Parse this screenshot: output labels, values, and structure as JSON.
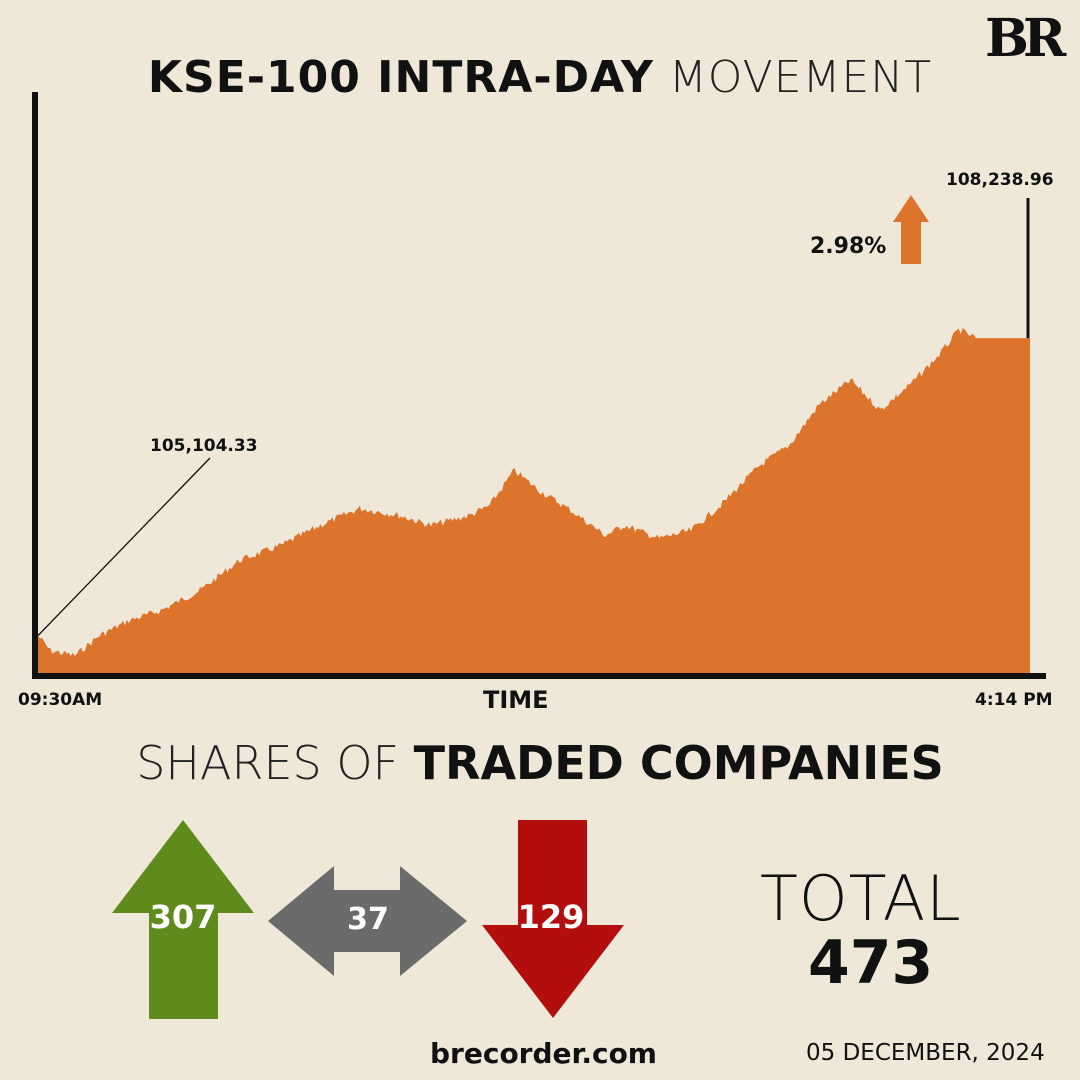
{
  "brand": {
    "logo": "BR",
    "site": "brecorder.com",
    "date": "05 DECEMBER, 2024"
  },
  "colors": {
    "background": "#efe7d8",
    "area": "#dc742c",
    "up": "#5f8a1c",
    "unchanged": "#6b6b6b",
    "down": "#b30e0e"
  },
  "chart_data": {
    "type": "area",
    "title_bold": "KSE-100 INTRA-DAY",
    "title_light": "MOVEMENT",
    "xlabel": "TIME",
    "x_start_label": "09:30AM",
    "x_end_label": "4:14 PM",
    "x_unit": "minutes since 09:30",
    "xlim": [
      0,
      404
    ],
    "ylim": [
      104710,
      110800
    ],
    "open_label": "105,104.33",
    "close_label": "108,238.96",
    "change_label": "2.98%",
    "change_direction": "up",
    "x": [
      0,
      5,
      15,
      25,
      37,
      50,
      66,
      82,
      99,
      115,
      131,
      147,
      160,
      176,
      184,
      194,
      204,
      217,
      231,
      239,
      253,
      266,
      278,
      294,
      306,
      318,
      331,
      343,
      355,
      367,
      375,
      382,
      404
    ],
    "values": [
      105104,
      104946,
      104893,
      105104,
      105262,
      105368,
      105579,
      105896,
      106054,
      106266,
      106445,
      106371,
      106266,
      106371,
      106477,
      106846,
      106635,
      106424,
      106160,
      106266,
      106128,
      106213,
      106477,
      106899,
      107110,
      107533,
      107797,
      107480,
      107744,
      108061,
      108325,
      108239,
      108239
    ]
  },
  "shares": {
    "title_light": "SHARES OF",
    "title_bold": "TRADED COMPANIES",
    "advanced": "307",
    "unchanged": "37",
    "declined": "129",
    "total_label": "TOTAL",
    "total": "473"
  }
}
